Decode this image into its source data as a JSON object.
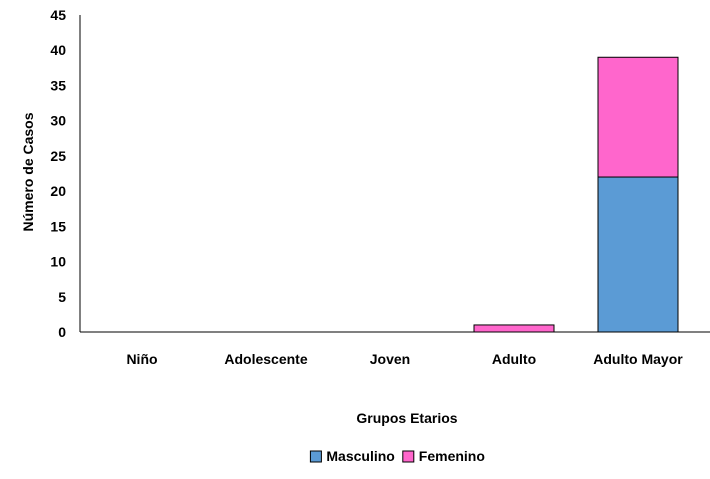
{
  "chart_data": {
    "type": "bar",
    "stacked": true,
    "title": "",
    "xlabel": "Grupos Etarios",
    "ylabel": "Número de Casos",
    "categories": [
      "Niño",
      "Adolescente",
      "Joven",
      "Adulto",
      "Adulto Mayor"
    ],
    "series": [
      {
        "name": "Masculino",
        "values": [
          0,
          0,
          0,
          0,
          22
        ],
        "color": "#5B9BD5"
      },
      {
        "name": "Femenino",
        "values": [
          0,
          0,
          0,
          1,
          17
        ],
        "color": "#FF66CC"
      }
    ],
    "ylim": [
      0,
      45
    ],
    "yticks": [
      0,
      5,
      10,
      15,
      20,
      25,
      30,
      35,
      40,
      45
    ],
    "grid": false,
    "legend_position": "bottom-center"
  }
}
